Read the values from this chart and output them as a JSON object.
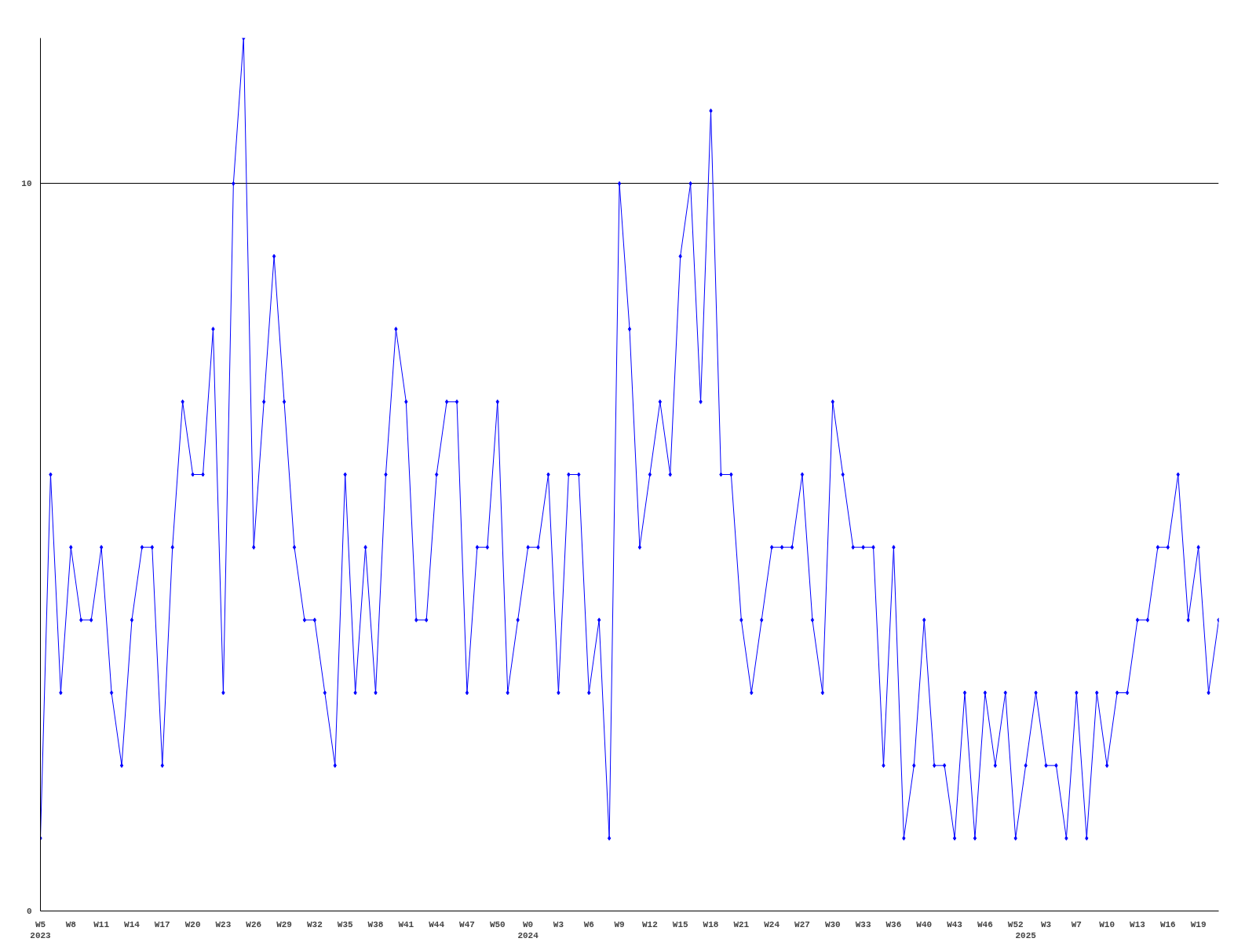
{
  "chart_data": {
    "type": "line",
    "categories": [
      "W5\n2023",
      null,
      null,
      "W8",
      null,
      null,
      "W11",
      null,
      null,
      "W14",
      null,
      null,
      "W17",
      null,
      null,
      "W20",
      null,
      null,
      "W23",
      null,
      null,
      "W26",
      null,
      null,
      "W29",
      null,
      null,
      "W32",
      null,
      null,
      "W35",
      null,
      null,
      "W38",
      null,
      null,
      "W41",
      null,
      null,
      "W44",
      null,
      null,
      "W47",
      null,
      null,
      "W50",
      null,
      null,
      "W0\n2024",
      null,
      null,
      "W3",
      null,
      null,
      "W6",
      null,
      null,
      "W9",
      null,
      null,
      "W12",
      null,
      null,
      "W15",
      null,
      null,
      "W18",
      null,
      null,
      "W21",
      null,
      null,
      "W24",
      null,
      null,
      "W27",
      null,
      null,
      "W30",
      null,
      null,
      "W33",
      null,
      null,
      "W36",
      null,
      null,
      "W40",
      null,
      null,
      "W43",
      null,
      null,
      "W46",
      null,
      null,
      "W52",
      "\n2025",
      null,
      "W3",
      null,
      null,
      "W7",
      null,
      null,
      "W10",
      null,
      null,
      "W13",
      null,
      null,
      "W16",
      null,
      null,
      "W19",
      null,
      null
    ],
    "series": [
      {
        "color": "#0000ff",
        "values": [
          1,
          6,
          3,
          5,
          4,
          4,
          5,
          3,
          2,
          4,
          5,
          5,
          2,
          5,
          7,
          6,
          6,
          8,
          3,
          10,
          12,
          5,
          7,
          9,
          7,
          5,
          4,
          4,
          3,
          2,
          6,
          3,
          5,
          3,
          6,
          8,
          7,
          4,
          4,
          6,
          7,
          7,
          3,
          5,
          5,
          7,
          3,
          4,
          5,
          5,
          6,
          3,
          6,
          6,
          3,
          4,
          1,
          10,
          8,
          5,
          6,
          7,
          6,
          9,
          10,
          7,
          11,
          6,
          6,
          4,
          3,
          4,
          5,
          5,
          5,
          6,
          4,
          3,
          7,
          6,
          5,
          5,
          5,
          2,
          5,
          1,
          2,
          4,
          2,
          2,
          1,
          3,
          1,
          3,
          2,
          3,
          1,
          2,
          3,
          2,
          2,
          1,
          3,
          1,
          3,
          2,
          3,
          3,
          4,
          4,
          5,
          5,
          6,
          4,
          5,
          3,
          4
        ]
      }
    ],
    "ylim": [
      0,
      12
    ],
    "yticks": [
      0,
      10
    ],
    "grid": "y",
    "marker": "diamond",
    "line_style": "solid"
  }
}
